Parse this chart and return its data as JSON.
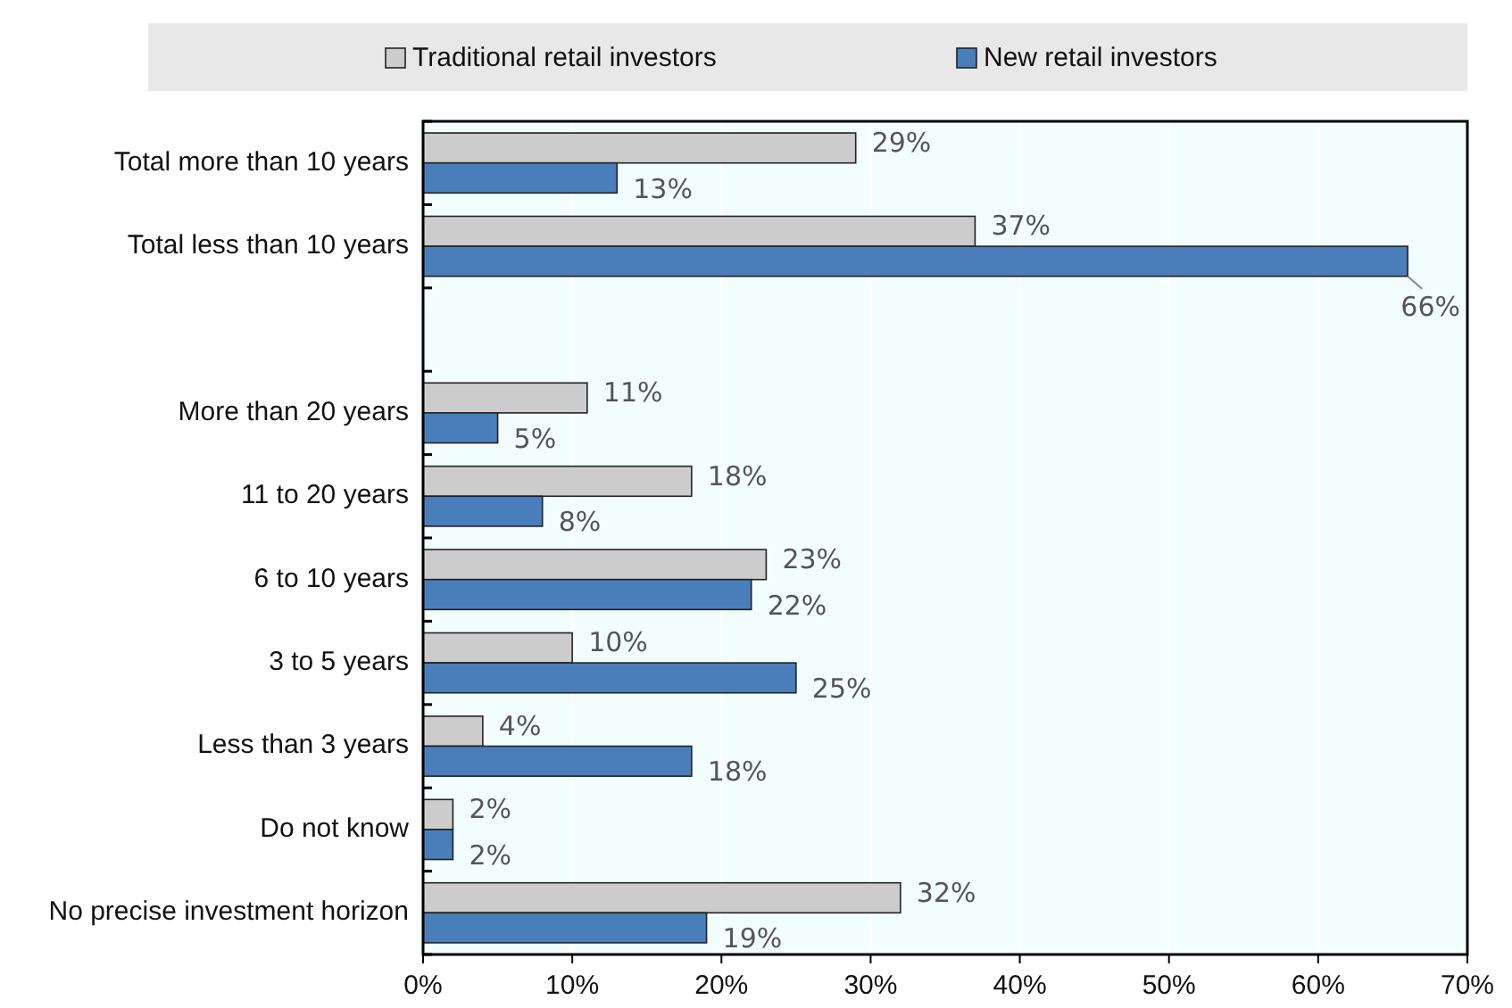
{
  "chart_data": {
    "type": "bar",
    "orientation": "horizontal",
    "categories": [
      "Total more than 10 years",
      "Total less than 10 years",
      null,
      "More than 20 years",
      "11 to 20 years",
      "6 to 10 years",
      "3 to 5 years",
      "Less than 3 years",
      "Do not know",
      "No precise investment horizon"
    ],
    "series": [
      {
        "name": "Traditional retail investors",
        "color": "#cccccc",
        "values": [
          29,
          37,
          null,
          11,
          18,
          23,
          10,
          4,
          2,
          32
        ],
        "value_labels": [
          "29%",
          "37%",
          null,
          "11%",
          "18%",
          "23%",
          "10%",
          "4%",
          "2%",
          "32%"
        ]
      },
      {
        "name": "New retail investors",
        "color": "#4a7ebb",
        "values": [
          13,
          66,
          null,
          5,
          8,
          22,
          25,
          18,
          2,
          19
        ],
        "value_labels": [
          "13%",
          "66%",
          null,
          "5%",
          "8%",
          "22%",
          "25%",
          "18%",
          "2%",
          "19%"
        ]
      }
    ],
    "xlim": [
      0,
      70
    ],
    "xticks": [
      {
        "value": 0,
        "label": "0%"
      },
      {
        "value": 10,
        "label": "10%"
      },
      {
        "value": 20,
        "label": "20%"
      },
      {
        "value": 30,
        "label": "30%"
      },
      {
        "value": 40,
        "label": "40%"
      },
      {
        "value": 50,
        "label": "50%"
      },
      {
        "value": 60,
        "label": "60%"
      },
      {
        "value": 70,
        "label": "70%"
      }
    ],
    "grid": "x",
    "legend": "top"
  }
}
